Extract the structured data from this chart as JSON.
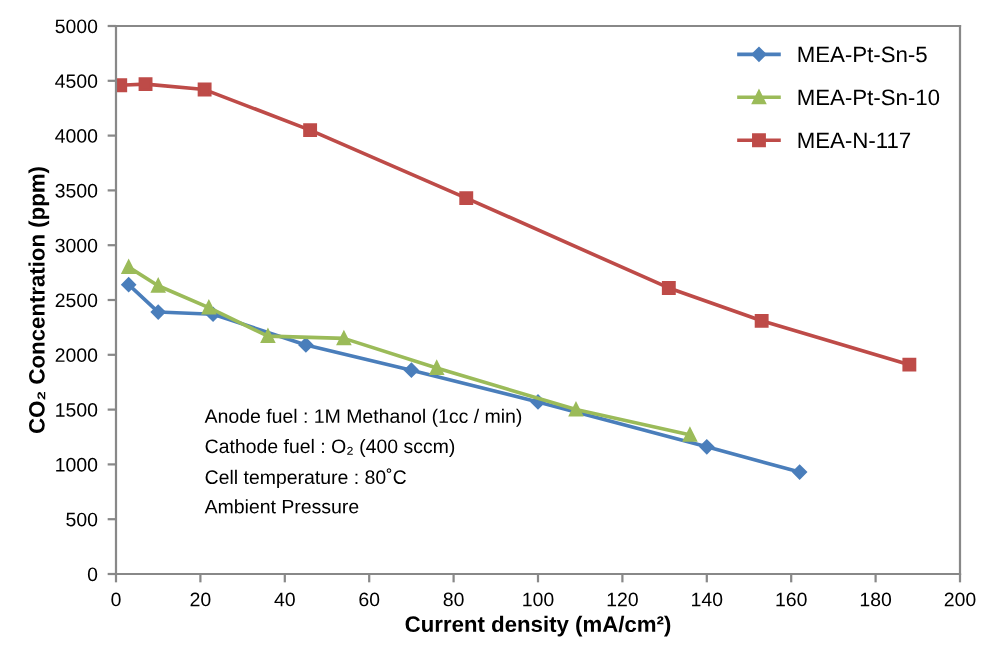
{
  "chart_data": {
    "type": "line",
    "xlabel": "Current density (mA/cm²)",
    "ylabel": "CO₂ Concentration (ppm)",
    "xlim": [
      0,
      200
    ],
    "xticks": [
      0,
      20,
      40,
      60,
      80,
      100,
      120,
      140,
      160,
      180,
      200
    ],
    "ylim": [
      0,
      5000
    ],
    "yticks": [
      0,
      500,
      1000,
      1500,
      2000,
      2500,
      3000,
      3500,
      4000,
      4500,
      5000
    ],
    "grid": false,
    "legend": "top right",
    "line_style": "solid",
    "series": [
      {
        "name": "MEA-Pt-Sn-5",
        "color": "#4a7ebb",
        "marker": "diamond",
        "x": [
          3,
          10,
          23,
          45,
          70,
          100,
          140,
          162
        ],
        "values": [
          2640,
          2390,
          2370,
          2090,
          1860,
          1570,
          1160,
          930
        ]
      },
      {
        "name": "MEA-Pt-Sn-10",
        "color": "#9bbb59",
        "marker": "triangle",
        "x": [
          3,
          10,
          22,
          36,
          54,
          76,
          109,
          136
        ],
        "values": [
          2800,
          2630,
          2430,
          2170,
          2150,
          1880,
          1500,
          1270
        ]
      },
      {
        "name": "MEA-N-117",
        "color": "#be4b48",
        "marker": "square",
        "x": [
          1,
          7,
          21,
          46,
          83,
          131,
          153,
          188
        ],
        "values": [
          4460,
          4470,
          4420,
          4050,
          3430,
          2610,
          2310,
          1910
        ]
      }
    ],
    "annotations": [
      "Anode fuel : 1M Methanol (1cc / min)",
      "Cathode fuel : O₂ (400 sccm)",
      "Cell temperature : 80˚C",
      "Ambient Pressure"
    ]
  }
}
